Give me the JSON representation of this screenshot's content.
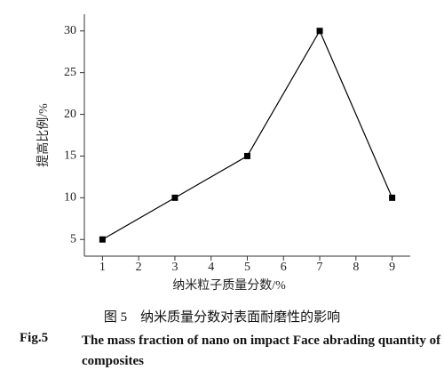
{
  "chart_data": {
    "type": "line",
    "title": "图 5　纳米质量分数对表面耐磨性的影响",
    "figure_label": "Fig.5",
    "subtitle": "The mass fraction of nano on impact Face abrading quantity of composites",
    "x_label": "纳米粒子质量分数/%",
    "y_label": "提高比例/%",
    "x": [
      1,
      3,
      5,
      7,
      9
    ],
    "series": [
      {
        "name": "提高比例",
        "color": "#000000",
        "values": [
          5,
          10,
          15,
          30,
          10
        ]
      }
    ],
    "xlim": [
      0.5,
      9.5
    ],
    "xticks": [
      1,
      2,
      3,
      4,
      5,
      6,
      7,
      8,
      9
    ],
    "ylim": [
      3,
      32
    ],
    "yticks": [
      5,
      10,
      15,
      20,
      25,
      30
    ],
    "grid": false,
    "legend": false
  }
}
